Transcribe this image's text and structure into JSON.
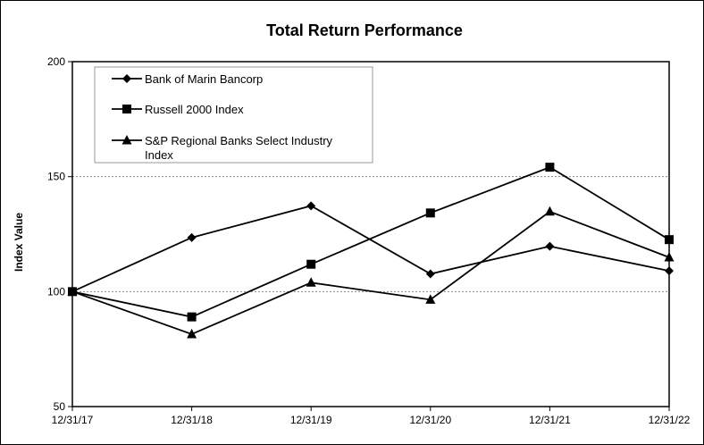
{
  "chart_data": {
    "type": "line",
    "title": "Total Return Performance",
    "ylabel": "Index Value",
    "xlabel": "",
    "ylim": [
      50,
      200
    ],
    "y_ticks": [
      50,
      100,
      150,
      200
    ],
    "categories": [
      "12/31/17",
      "12/31/18",
      "12/31/19",
      "12/31/20",
      "12/31/21",
      "12/31/22"
    ],
    "gridlines": [
      100,
      150
    ],
    "legend_position": "top-left",
    "series": [
      {
        "name": "Bank of Marin Bancorp",
        "marker": "diamond",
        "values": [
          100,
          123.5,
          137.3,
          107.7,
          119.7,
          109
        ]
      },
      {
        "name": "Russell 2000 Index",
        "marker": "square",
        "values": [
          100,
          89.0,
          111.9,
          134.2,
          154.1,
          122.6
        ]
      },
      {
        "name": "S&P Regional Banks Select Industry Index",
        "name_lines": [
          "S&P Regional Banks Select Industry",
          "Index"
        ],
        "marker": "triangle",
        "values": [
          100,
          81.5,
          103.9,
          96.5,
          134.8,
          114.9
        ]
      }
    ]
  }
}
